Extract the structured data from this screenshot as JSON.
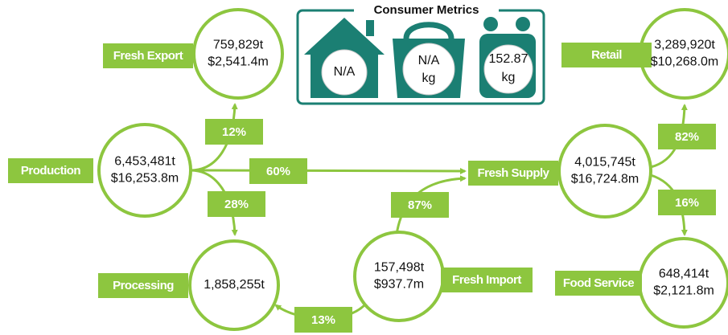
{
  "consumer_metrics": {
    "title": "Consumer Metrics",
    "items": [
      {
        "value": "N/A"
      },
      {
        "value": "N/A",
        "unit": "kg"
      },
      {
        "value": "152.87",
        "unit": "kg"
      }
    ]
  },
  "nodes": [
    {
      "label": "Production",
      "lines": [
        "6,453,481t",
        "$16,253.8m"
      ]
    },
    {
      "label": "Fresh Export",
      "lines": [
        "759,829t",
        "$2,541.4m"
      ]
    },
    {
      "label": "Processing",
      "lines": [
        "1,858,255t"
      ]
    },
    {
      "label": "Fresh Import",
      "lines": [
        "157,498t",
        "$937.7m"
      ]
    },
    {
      "label": "Fresh Supply",
      "lines": [
        "4,015,745t",
        "$16,724.8m"
      ]
    },
    {
      "label": "Retail",
      "lines": [
        "3,289,920t",
        "$10,268.0m"
      ]
    },
    {
      "label": "Food Service",
      "lines": [
        "648,414t",
        "$2,121.8m"
      ]
    }
  ],
  "flows": [
    "12%",
    "60%",
    "28%",
    "87%",
    "13%",
    "82%",
    "16%"
  ]
}
